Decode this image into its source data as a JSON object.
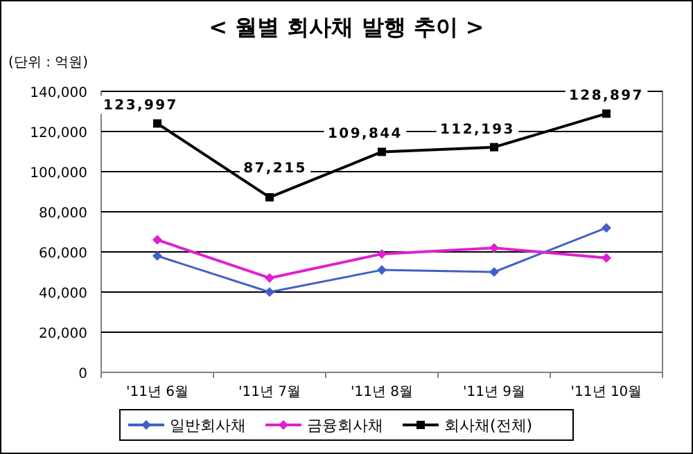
{
  "chart_data": {
    "type": "line",
    "title": "< 월별 회사채 발행 추이 >",
    "annotations": [
      "(단위 : 억원)"
    ],
    "categories": [
      "'11년 6월",
      "'11년 7월",
      "'11년 8월",
      "'11년 9월",
      "'11년 10월"
    ],
    "series": [
      {
        "name": "일반회사채",
        "color": "#4060c8",
        "marker": "diamond",
        "values": [
          58000,
          40000,
          51000,
          50000,
          72000
        ]
      },
      {
        "name": "금융회사채",
        "color": "#e020d0",
        "marker": "diamond",
        "values": [
          66000,
          47000,
          59000,
          62000,
          57000
        ]
      },
      {
        "name": "회사채(전체)",
        "color": "#000000",
        "marker": "square",
        "values": [
          123997,
          87215,
          109844,
          112193,
          128897
        ],
        "value_labels": [
          "123,997",
          "87,215",
          "109,844",
          "112,193",
          "128,897"
        ]
      }
    ],
    "ylim": [
      0,
      140000
    ],
    "yticks": [
      {
        "value": 0,
        "label": "0"
      },
      {
        "value": 20000,
        "label": "20,000"
      },
      {
        "value": 40000,
        "label": "40,000"
      },
      {
        "value": 60000,
        "label": "60,000"
      },
      {
        "value": 80000,
        "label": "80,000"
      },
      {
        "value": 100000,
        "label": "100,000"
      },
      {
        "value": 120000,
        "label": "120,000"
      },
      {
        "value": 140000,
        "label": "140,000"
      }
    ],
    "grid": "y",
    "legend": "bottom",
    "line_style": "solid"
  }
}
